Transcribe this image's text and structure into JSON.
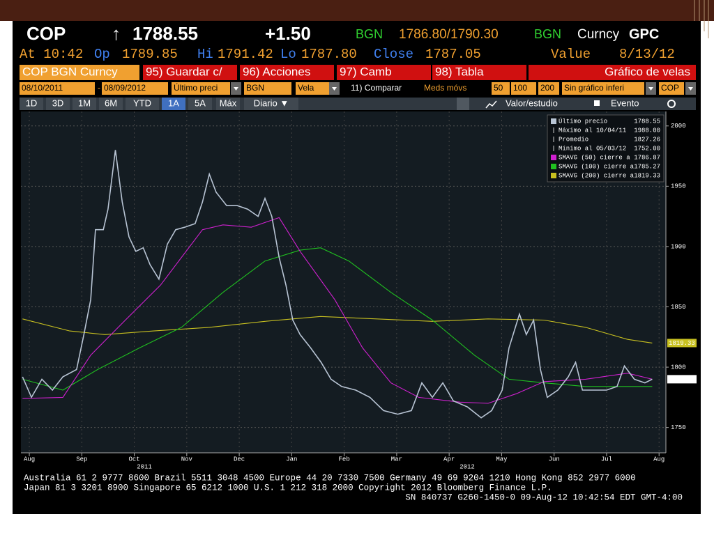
{
  "header": {
    "ticker": "COP",
    "arrow": "↑",
    "last": "1788.55",
    "change": "+1.50",
    "src1": "BGN",
    "bidask": "1786.80/1790.30",
    "src2": "BGN",
    "curncy": "Curncy",
    "gpc": "GPC"
  },
  "quote": {
    "at": "At 10:42",
    "op_label": "Op",
    "op": "1789.85",
    "hi_label": "Hi",
    "hi": "1791.42",
    "lo_label": "Lo",
    "lo": "1787.80",
    "close_label": "Close",
    "close": "1787.05",
    "value_label": "Value",
    "date": "8/13/12"
  },
  "toolbar": {
    "security": "COP BGN Curncy",
    "buttons": [
      "95) Guardar c/",
      "96) Acciones",
      "97) Camb",
      "98) Tabla"
    ],
    "chart_title": "Gráfico de velas"
  },
  "fields": [
    "08/10/2011",
    "-",
    "08/09/2012",
    "Último preci",
    "BGN",
    "Vela",
    "11) Comparar",
    "Meds móvs",
    "50",
    "100",
    "200",
    "Sin gráfico inferi",
    "COP"
  ],
  "tabs": [
    "1D",
    "3D",
    "1M",
    "6M",
    "YTD",
    "1A",
    "5A",
    "Máx",
    "Diario ▼"
  ],
  "active_tab": 5,
  "tools": [
    "Valor/estudio",
    "Evento"
  ],
  "footer": [
    "Australia 61 2 9777 8600 Brazil 5511 3048 4500 Europe 44 20 7330 7500 Germany 49 69 9204 1210 Hong Kong 852 2977 6000",
    "Japan 81 3 3201 8900         Singapore 65 6212 1000        U.S. 1 212 318 2000          Copyright 2012 Bloomberg Finance L.P.",
    "SN 840737 G260-1450-0 09-Aug-12 10:42:54 EDT  GMT-4:00"
  ],
  "chart_data": {
    "type": "line",
    "xlim": [
      -0.16,
      12.13
    ],
    "ylim": [
      1729,
      2012
    ],
    "yticks": [
      1750,
      1800,
      1850,
      1900,
      1950,
      2000
    ],
    "xticks": [
      {
        "value": 0,
        "label": "Aug"
      },
      {
        "value": 1,
        "label": "Sep"
      },
      {
        "value": 2,
        "label": "Oct"
      },
      {
        "value": 3,
        "label": "Nov"
      },
      {
        "value": 4,
        "label": "Dec"
      },
      {
        "value": 5,
        "label": "Jan"
      },
      {
        "value": 6,
        "label": "Feb"
      },
      {
        "value": 7,
        "label": "Mar"
      },
      {
        "value": 8,
        "label": "Apr"
      },
      {
        "value": 9,
        "label": "May"
      },
      {
        "value": 10,
        "label": "Jun"
      },
      {
        "value": 11,
        "label": "Jul"
      },
      {
        "value": 12,
        "label": "Aug"
      }
    ],
    "year_labels": [
      "2011",
      "2012"
    ],
    "grid": true,
    "legend": "upper right",
    "stats": [
      {
        "label": "Máximo al 10/04/11",
        "value": "1988.00"
      },
      {
        "label": "Promedio",
        "value": "1827.26"
      },
      {
        "label": "Mínimo al 05/03/12",
        "value": "1752.00"
      }
    ],
    "series": [
      {
        "name": "Último precio",
        "legend_value": "1788.55",
        "color": "#b8c4d4",
        "x": [
          -0.13,
          0.04,
          0.24,
          0.44,
          0.64,
          0.9,
          1.04,
          1.17,
          1.26,
          1.41,
          1.5,
          1.64,
          1.77,
          1.9,
          2.03,
          2.17,
          2.3,
          2.47,
          2.63,
          2.79,
          2.96,
          3.16,
          3.3,
          3.43,
          3.56,
          3.76,
          3.96,
          4.16,
          4.36,
          4.49,
          4.62,
          4.76,
          4.89,
          5.02,
          5.16,
          5.36,
          5.56,
          5.75,
          5.95,
          6.22,
          6.49,
          6.75,
          7.02,
          7.28,
          7.48,
          7.68,
          7.88,
          8.08,
          8.35,
          8.61,
          8.81,
          9.01,
          9.14,
          9.34,
          9.47,
          9.61,
          9.74,
          9.87,
          10.07,
          10.27,
          10.41,
          10.54,
          10.74,
          11.0,
          11.2,
          11.34,
          11.53,
          11.73,
          11.87
        ],
        "values": [
          1792,
          1775,
          1790,
          1781,
          1792,
          1798,
          1827,
          1856,
          1914,
          1914,
          1931,
          1980,
          1937,
          1908,
          1896,
          1899,
          1885,
          1873,
          1902,
          1914,
          1916,
          1919,
          1937,
          1960,
          1945,
          1934,
          1934,
          1931,
          1925,
          1940,
          1925,
          1891,
          1868,
          1839,
          1827,
          1816,
          1804,
          1790,
          1784,
          1781,
          1775,
          1764,
          1761,
          1764,
          1787,
          1775,
          1787,
          1772,
          1767,
          1758,
          1764,
          1781,
          1816,
          1844,
          1827,
          1839,
          1798,
          1775,
          1781,
          1792,
          1804,
          1781,
          1781,
          1781,
          1784,
          1801,
          1790,
          1787,
          1790
        ]
      },
      {
        "name": "SMAVG (50) cierre a",
        "legend_value": "1786.87",
        "color": "#d020d0",
        "x": [
          -0.13,
          0.64,
          1.17,
          1.83,
          2.5,
          3.3,
          3.69,
          4.23,
          4.76,
          5.16,
          5.82,
          6.35,
          6.89,
          7.42,
          8.21,
          8.74,
          9.28,
          9.81,
          10.6,
          11.4,
          11.87
        ],
        "values": [
          1774,
          1775,
          1810,
          1839,
          1868,
          1914,
          1918,
          1916,
          1924,
          1896,
          1856,
          1816,
          1787,
          1775,
          1771,
          1770,
          1778,
          1788,
          1790,
          1795,
          1790
        ]
      },
      {
        "name": "SMAVG (100) cierre a",
        "legend_value": "1785.27",
        "color": "#20c020",
        "x": [
          -0.13,
          0.64,
          1.3,
          2.1,
          2.9,
          3.69,
          4.49,
          5.16,
          5.55,
          6.09,
          6.89,
          7.68,
          8.48,
          9.14,
          9.81,
          10.6,
          11.87
        ],
        "values": [
          1790,
          1781,
          1798,
          1816,
          1833,
          1862,
          1888,
          1897,
          1899,
          1888,
          1862,
          1839,
          1810,
          1790,
          1787,
          1784,
          1784
        ]
      },
      {
        "name": "SMAVG (200) cierre a",
        "legend_value": "1819.33",
        "color": "#c8c020",
        "x": [
          -0.13,
          0.77,
          1.44,
          2.37,
          3.43,
          4.49,
          5.55,
          6.62,
          7.68,
          8.74,
          9.81,
          10.6,
          11.4,
          11.87
        ],
        "values": [
          1840,
          1830,
          1827,
          1830,
          1833,
          1838,
          1842,
          1840,
          1838,
          1840,
          1839,
          1833,
          1823,
          1820
        ]
      }
    ]
  }
}
